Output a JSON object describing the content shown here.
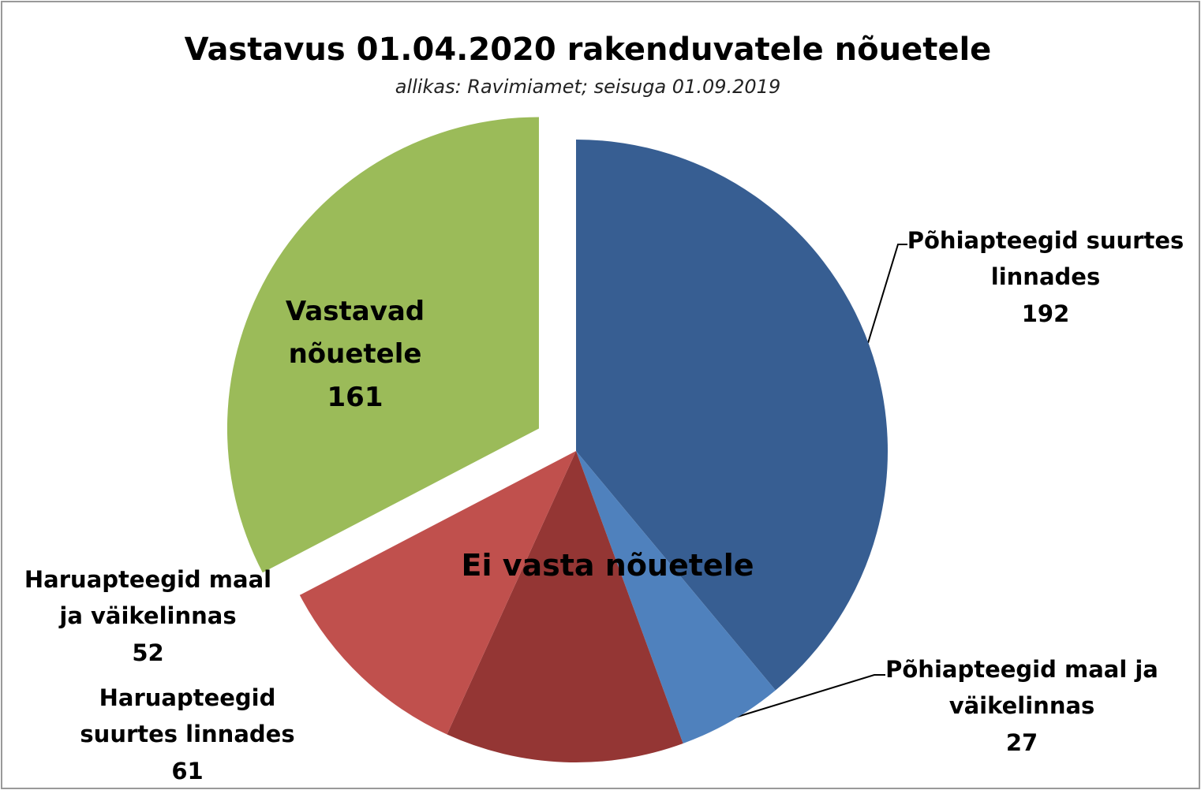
{
  "chart_data": {
    "type": "pie",
    "title": "Vastavus 01.04.2020 rakenduvatele nõuetele",
    "subtitle": "allikas: Ravimiamet; seisuga 01.09.2019",
    "annotation": "Ei vasta nõuetele",
    "categories": [
      "Põhiapteegid suurtes linnades",
      "Põhiapteegid maal ja väikelinnas",
      "Haruapteegid suurtes linnades",
      "Haruapteegid maal ja väikelinnas",
      "Vastavad nõuetele"
    ],
    "values": [
      192,
      27,
      61,
      52,
      161
    ],
    "colors": [
      "#375e92",
      "#4f81bd",
      "#943634",
      "#c0504d",
      "#9bbb59"
    ]
  }
}
